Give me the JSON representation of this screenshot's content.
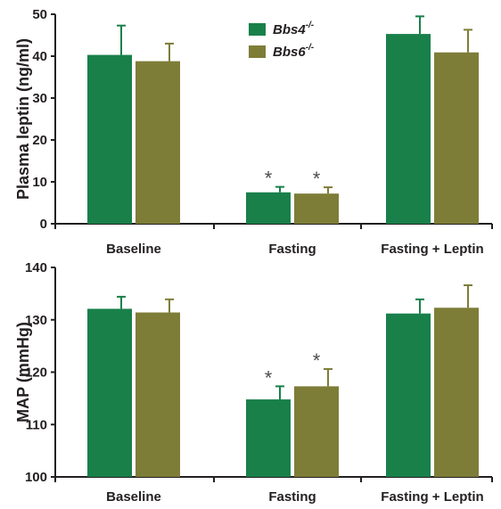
{
  "chart_data": [
    {
      "type": "bar",
      "title": "",
      "xlabel": "",
      "ylabel": "Plasma leptin (ng/ml)",
      "ylim": [
        0,
        50
      ],
      "yticks": [
        0,
        10,
        20,
        30,
        40,
        50
      ],
      "categories": [
        "Baseline",
        "Fasting",
        "Fasting + Leptin"
      ],
      "series": [
        {
          "name": "Bbs4",
          "name_sup": "-/-",
          "color": "#19804a",
          "values": [
            40.3,
            7.5,
            45.3
          ],
          "errors": [
            7.0,
            1.3,
            4.2
          ]
        },
        {
          "name": "Bbs6",
          "name_sup": "-/-",
          "color": "#7e7d38",
          "values": [
            38.8,
            7.2,
            40.9
          ],
          "errors": [
            4.2,
            1.5,
            5.4
          ]
        }
      ],
      "significance": [
        {
          "series": 0,
          "category": 1,
          "mark": "*"
        },
        {
          "series": 1,
          "category": 1,
          "mark": "*"
        }
      ],
      "legend": "top-center",
      "grid": false
    },
    {
      "type": "bar",
      "title": "",
      "xlabel": "",
      "ylabel": "MAP (mmHg)",
      "ylim": [
        100,
        140
      ],
      "yticks": [
        100,
        110,
        120,
        130,
        140
      ],
      "categories": [
        "Baseline",
        "Fasting",
        "Fasting + Leptin"
      ],
      "series": [
        {
          "name": "Bbs4",
          "name_sup": "-/-",
          "color": "#19804a",
          "values": [
            132.1,
            114.8,
            131.2
          ],
          "errors": [
            2.3,
            2.5,
            2.7
          ]
        },
        {
          "name": "Bbs6",
          "name_sup": "-/-",
          "color": "#7e7d38",
          "values": [
            131.4,
            117.3,
            132.3
          ],
          "errors": [
            2.5,
            3.3,
            4.3
          ]
        }
      ],
      "significance": [
        {
          "series": 0,
          "category": 1,
          "mark": "*"
        },
        {
          "series": 1,
          "category": 1,
          "mark": "*"
        }
      ],
      "legend": "none",
      "grid": false
    }
  ]
}
